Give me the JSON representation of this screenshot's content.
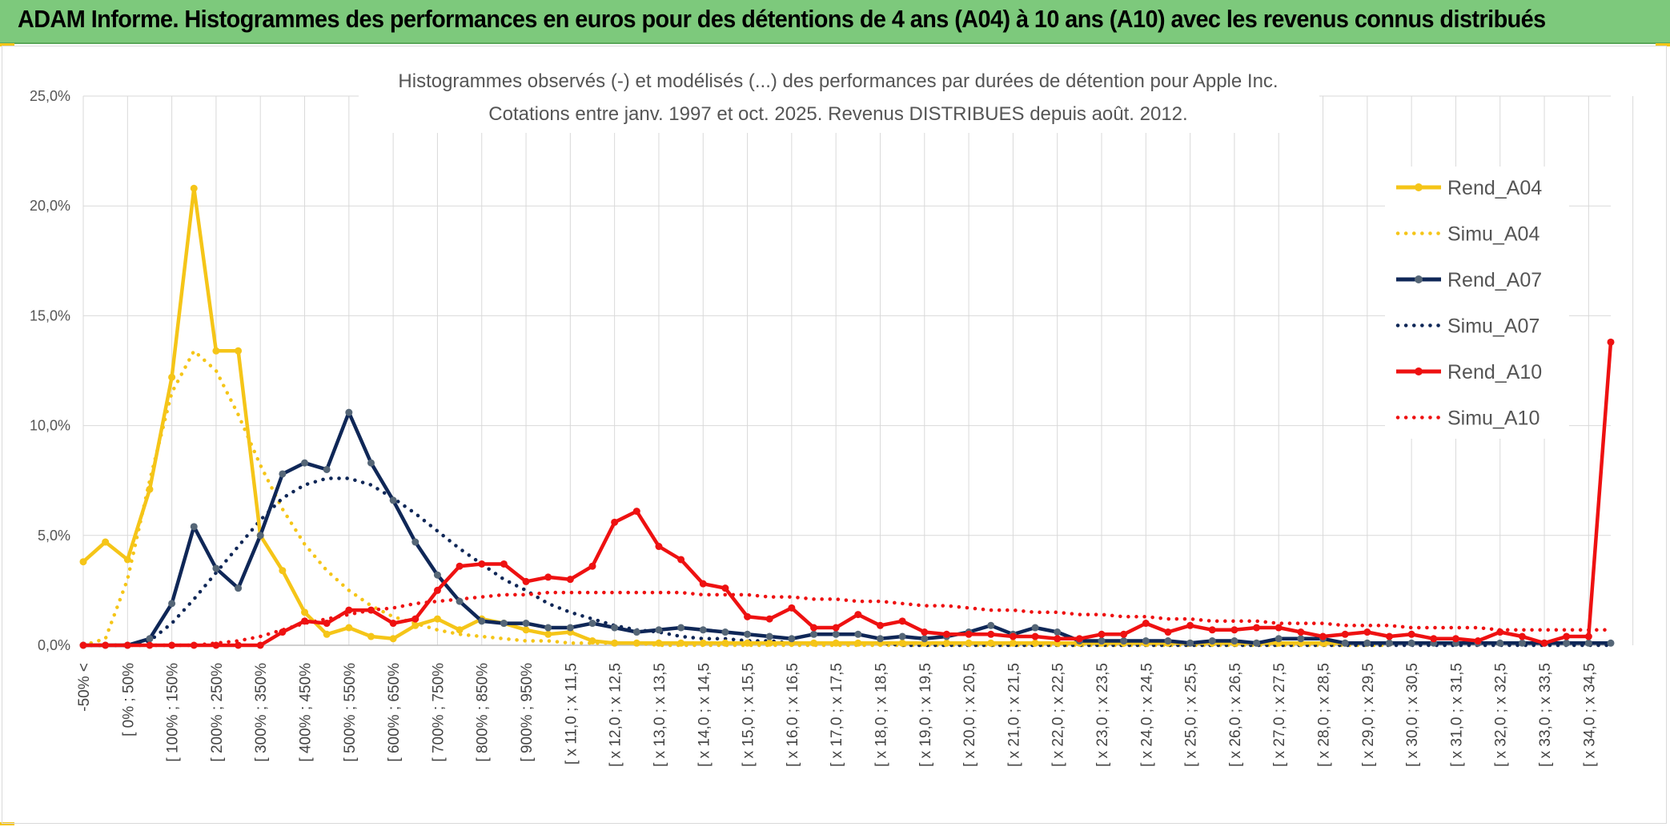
{
  "banner": {
    "title": "ADAM Informe. Histogrammes des performances en euros pour des détentions de 4 ans (A04) à 10 ans (A10) avec les revenus connus distribués",
    "background": "#7dc97c"
  },
  "chart_data": {
    "type": "line",
    "title": "Histogrammes observés (-) et modélisés (...) des performances par durées de détention pour Apple Inc.",
    "subtitle": "Cotations entre janv. 1997 et oct. 2025. Revenus DISTRIBUES depuis août. 2012.",
    "xlabel": "",
    "ylabel": "",
    "ylim": [
      0,
      0.25
    ],
    "y_ticks": [
      "0,0%",
      "5,0%",
      "10,0%",
      "15,0%",
      "20,0%",
      "25,0%"
    ],
    "grid": true,
    "legend_position": "right",
    "x_tick_labels": [
      "-50% <",
      "[ 0% ; 50%",
      "[ 100% ; 150%",
      "[ 200% ; 250%",
      "[ 300% ; 350%",
      "[ 400% ; 450%",
      "[ 500% ; 550%",
      "[ 600% ; 650%",
      "[ 700% ; 750%",
      "[ 800% ; 850%",
      "[ 900% ; 950%",
      "[ x 11,0 ; x 11,5",
      "[ x 12,0 ; x 12,5",
      "[ x 13,0 ; x 13,5",
      "[ x 14,0 ; x 14,5",
      "[ x 15,0 ; x 15,5",
      "[ x 16,0 ; x 16,5",
      "[ x 17,0 ; x 17,5",
      "[ x 18,0 ; x 18,5",
      "[ x 19,0 ; x 19,5",
      "[ x 20,0 ; x 20,5",
      "[ x 21,0 ; x 21,5",
      "[ x 22,0 ; x 22,5",
      "[ x 23,0 ; x 23,5",
      "[ x 24,0 ; x 24,5",
      "[ x 25,0 ; x 25,5",
      "[ x 26,0 ; x 26,5",
      "[ x 27,0 ; x 27,5",
      "[ x 28,0 ; x 28,5",
      "[ x 29,0 ; x 29,5",
      "[ x 30,0 ; x 30,5",
      "[ x 31,0 ; x 31,5",
      "[ x 32,0 ; x 32,5",
      "[ x 33,0 ; x 33,5",
      "[ x 34,0 ; x 34,5"
    ],
    "n_points": 70,
    "series": [
      {
        "name": "Rend_A04",
        "style": "solid",
        "color": "#f5c518",
        "marker_color": "#f5c518",
        "values": [
          0.038,
          0.047,
          0.039,
          0.071,
          0.122,
          0.208,
          0.134,
          0.134,
          0.05,
          0.034,
          0.015,
          0.005,
          0.008,
          0.004,
          0.003,
          0.009,
          0.012,
          0.007,
          0.012,
          0.01,
          0.007,
          0.005,
          0.006,
          0.002,
          0.001,
          0.001,
          0.001,
          0.001,
          0.001,
          0.001,
          0.001,
          0.001,
          0.001,
          0.001,
          0.001,
          0.001,
          0.001,
          0.001,
          0.001,
          0.001,
          0.001,
          0.001,
          0.001,
          0.001,
          0.001,
          0.001,
          0.001,
          0.001,
          0.001,
          0.001,
          0.001,
          0.001,
          0.001,
          0.001,
          0.001,
          0.001,
          0.001,
          0.001,
          0.001,
          0.001,
          null,
          null,
          null,
          null,
          null,
          null,
          null,
          null,
          null,
          null
        ]
      },
      {
        "name": "Simu_A04",
        "style": "dotted",
        "color": "#f5c518",
        "values": [
          0.0,
          0.003,
          0.03,
          0.075,
          0.115,
          0.134,
          0.125,
          0.105,
          0.082,
          0.062,
          0.046,
          0.034,
          0.025,
          0.018,
          0.013,
          0.01,
          0.007,
          0.005,
          0.004,
          0.003,
          0.002,
          0.002,
          0.001,
          0.001,
          0.001,
          0.001,
          0.0,
          0.0,
          0.0,
          0.0,
          0.0,
          0.0,
          0.0,
          0.0,
          0.0,
          0.0,
          0.0,
          0.0,
          0.0,
          0.0,
          0.0,
          0.0,
          0.0,
          0.0,
          0.0,
          0.0,
          0.0,
          0.0,
          0.0,
          0.0,
          0.0,
          0.0,
          0.0,
          0.0,
          0.0,
          0.0,
          0.0,
          0.0,
          0.0,
          0.0,
          null,
          null,
          null,
          null,
          null,
          null,
          null,
          null,
          null,
          null
        ]
      },
      {
        "name": "Rend_A07",
        "style": "solid",
        "color": "#0f2757",
        "marker_color": "#556677",
        "values": [
          0.0,
          0.0,
          0.0,
          0.003,
          0.019,
          0.054,
          0.035,
          0.026,
          0.05,
          0.078,
          0.083,
          0.08,
          0.106,
          0.083,
          0.066,
          0.047,
          0.032,
          0.02,
          0.011,
          0.01,
          0.01,
          0.008,
          0.008,
          0.01,
          0.008,
          0.006,
          0.007,
          0.008,
          0.007,
          0.006,
          0.005,
          0.004,
          0.003,
          0.005,
          0.005,
          0.005,
          0.003,
          0.004,
          0.003,
          0.004,
          0.006,
          0.009,
          0.005,
          0.008,
          0.006,
          0.002,
          0.002,
          0.002,
          0.002,
          0.002,
          0.001,
          0.002,
          0.002,
          0.001,
          0.003,
          0.003,
          0.003,
          0.001,
          0.001,
          0.001,
          0.001,
          0.001,
          0.001,
          0.001,
          0.001,
          0.001,
          0.001,
          0.001,
          0.001,
          0.001
        ]
      },
      {
        "name": "Simu_A07",
        "style": "dotted",
        "color": "#0f2757",
        "values": [
          0.0,
          0.0,
          0.0,
          0.002,
          0.01,
          0.021,
          0.033,
          0.045,
          0.057,
          0.067,
          0.073,
          0.076,
          0.076,
          0.073,
          0.067,
          0.06,
          0.052,
          0.044,
          0.037,
          0.03,
          0.025,
          0.019,
          0.015,
          0.012,
          0.009,
          0.007,
          0.006,
          0.004,
          0.003,
          0.003,
          0.002,
          0.002,
          0.001,
          0.001,
          0.001,
          0.001,
          0.001,
          0.0,
          0.0,
          0.0,
          0.0,
          0.0,
          0.0,
          0.0,
          0.0,
          0.0,
          0.0,
          0.0,
          0.0,
          0.0,
          0.0,
          0.0,
          0.0,
          0.0,
          0.0,
          0.0,
          0.0,
          0.0,
          0.0,
          0.0,
          0.0,
          0.0,
          0.0,
          0.0,
          0.0,
          0.0,
          0.0,
          0.0,
          0.0,
          0.0
        ]
      },
      {
        "name": "Rend_A10",
        "style": "solid",
        "color": "#ee1111",
        "marker_color": "#ee1111",
        "values": [
          0.0,
          0.0,
          0.0,
          0.0,
          0.0,
          0.0,
          0.0,
          0.0,
          0.0,
          0.006,
          0.011,
          0.01,
          0.016,
          0.016,
          0.01,
          0.012,
          0.025,
          0.036,
          0.037,
          0.037,
          0.029,
          0.031,
          0.03,
          0.036,
          0.056,
          0.061,
          0.045,
          0.039,
          0.028,
          0.026,
          0.013,
          0.012,
          0.017,
          0.008,
          0.008,
          0.014,
          0.009,
          0.011,
          0.006,
          0.005,
          0.005,
          0.005,
          0.004,
          0.004,
          0.003,
          0.003,
          0.005,
          0.005,
          0.01,
          0.006,
          0.009,
          0.007,
          0.007,
          0.008,
          0.008,
          0.006,
          0.004,
          0.005,
          0.006,
          0.004,
          0.005,
          0.003,
          0.003,
          0.002,
          0.006,
          0.004,
          0.001,
          0.004,
          0.004,
          0.138
        ]
      },
      {
        "name": "Simu_A10",
        "style": "dotted",
        "color": "#ee1111",
        "values": [
          0.0,
          0.0,
          0.0,
          0.0,
          0.0,
          0.0,
          0.001,
          0.002,
          0.004,
          0.007,
          0.01,
          0.012,
          0.014,
          0.016,
          0.017,
          0.019,
          0.02,
          0.021,
          0.022,
          0.023,
          0.023,
          0.024,
          0.024,
          0.024,
          0.024,
          0.024,
          0.024,
          0.024,
          0.023,
          0.023,
          0.023,
          0.022,
          0.022,
          0.021,
          0.021,
          0.02,
          0.02,
          0.019,
          0.018,
          0.018,
          0.017,
          0.016,
          0.016,
          0.015,
          0.015,
          0.014,
          0.014,
          0.013,
          0.013,
          0.012,
          0.012,
          0.011,
          0.011,
          0.011,
          0.01,
          0.01,
          0.01,
          0.009,
          0.009,
          0.009,
          0.008,
          0.008,
          0.008,
          0.008,
          0.007,
          0.007,
          0.007,
          0.007,
          0.007,
          0.007
        ]
      }
    ]
  }
}
